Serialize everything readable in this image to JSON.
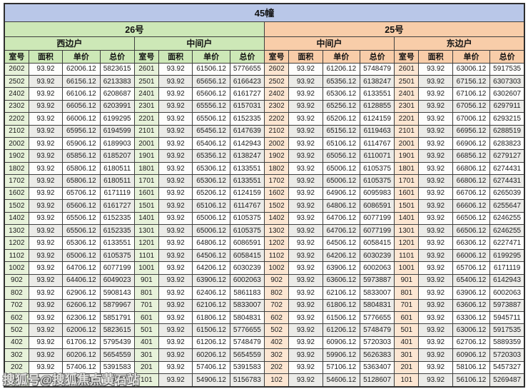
{
  "title": "45幢",
  "watermark": "搜狐号@搜狐焦点黄石站",
  "columns": [
    "室号",
    "面积",
    "单价",
    "总价"
  ],
  "sections": [
    {
      "label": "26号",
      "units": [
        "西边户",
        "中间户"
      ]
    },
    {
      "label": "25号",
      "units": [
        "中间户",
        "东边户"
      ]
    }
  ],
  "colors": {
    "title_bg": "#b9c7e8",
    "green_head": "#cde8b7",
    "green_cell": "#e7f2da",
    "orange_head": "#f8cda9",
    "orange_cell": "#fce6d2",
    "stripe": "#ebebe8",
    "border": "#3f3f3f"
  },
  "groups": [
    {
      "building": "26号",
      "unit_type": "西边户",
      "rows": [
        [
          "2602",
          "93.92",
          "62006.12",
          "5823615"
        ],
        [
          "2502",
          "93.92",
          "66156.12",
          "6213383"
        ],
        [
          "2402",
          "93.92",
          "66106.12",
          "6208687"
        ],
        [
          "2302",
          "93.92",
          "66056.12",
          "6203991"
        ],
        [
          "2202",
          "93.92",
          "66006.12",
          "6199295"
        ],
        [
          "2102",
          "93.92",
          "65956.12",
          "6194599"
        ],
        [
          "2002",
          "93.92",
          "65906.12",
          "6189903"
        ],
        [
          "1902",
          "93.92",
          "65856.12",
          "6185207"
        ],
        [
          "1802",
          "93.92",
          "65806.12",
          "6180511"
        ],
        [
          "1702",
          "93.92",
          "65806.12",
          "6180511"
        ],
        [
          "1602",
          "93.92",
          "65706.12",
          "6171119"
        ],
        [
          "1502",
          "93.92",
          "65606.12",
          "6161727"
        ],
        [
          "1402",
          "93.92",
          "65506.12",
          "6152335"
        ],
        [
          "1302",
          "93.92",
          "65506.12",
          "6152335"
        ],
        [
          "1202",
          "93.92",
          "65306.12",
          "6133551"
        ],
        [
          "1102",
          "93.92",
          "65006.12",
          "6105375"
        ],
        [
          "1002",
          "93.92",
          "64706.12",
          "6077199"
        ],
        [
          "902",
          "93.92",
          "64406.12",
          "6049023"
        ],
        [
          "802",
          "93.92",
          "62906.12",
          "5908143"
        ],
        [
          "702",
          "93.92",
          "62606.12",
          "5879967"
        ],
        [
          "602",
          "93.92",
          "62306.12",
          "5851791"
        ],
        [
          "502",
          "93.92",
          "62006.12",
          "5823615"
        ],
        [
          "402",
          "93.92",
          "61706.12",
          "5795439"
        ],
        [
          "302",
          "93.92",
          "60206.12",
          "5654559"
        ],
        [
          "202",
          "93.92",
          "57406.12",
          "5391583"
        ],
        [
          "102",
          "93.92",
          "55406.12",
          "5203743"
        ]
      ]
    },
    {
      "building": "26号",
      "unit_type": "中间户",
      "rows": [
        [
          "2601",
          "93.92",
          "61506.12",
          "5776655"
        ],
        [
          "2501",
          "93.92",
          "65656.12",
          "6166423"
        ],
        [
          "2401",
          "93.92",
          "65606.12",
          "6161727"
        ],
        [
          "2301",
          "93.92",
          "65556.12",
          "6157031"
        ],
        [
          "2201",
          "93.92",
          "65506.12",
          "6152335"
        ],
        [
          "2101",
          "93.92",
          "65456.12",
          "6147639"
        ],
        [
          "2001",
          "93.92",
          "65406.12",
          "6142943"
        ],
        [
          "1901",
          "93.92",
          "65356.12",
          "6138247"
        ],
        [
          "1801",
          "93.92",
          "65306.12",
          "6133551"
        ],
        [
          "1701",
          "93.92",
          "65306.12",
          "6133551"
        ],
        [
          "1601",
          "93.92",
          "65206.12",
          "6124159"
        ],
        [
          "1501",
          "93.92",
          "65106.12",
          "6114767"
        ],
        [
          "1401",
          "93.92",
          "65006.12",
          "6105375"
        ],
        [
          "1301",
          "93.92",
          "65006.12",
          "6105375"
        ],
        [
          "1201",
          "93.92",
          "64806.12",
          "6086591"
        ],
        [
          "1101",
          "93.92",
          "64506.12",
          "6058415"
        ],
        [
          "1001",
          "93.92",
          "64206.12",
          "6030239"
        ],
        [
          "901",
          "93.92",
          "63906.12",
          "6002063"
        ],
        [
          "801",
          "93.92",
          "62406.12",
          "5861183"
        ],
        [
          "701",
          "93.92",
          "62106.12",
          "5833007"
        ],
        [
          "601",
          "93.92",
          "61806.12",
          "5804831"
        ],
        [
          "501",
          "93.92",
          "61506.12",
          "5776655"
        ],
        [
          "401",
          "93.92",
          "61206.12",
          "5748479"
        ],
        [
          "301",
          "93.92",
          "60206.12",
          "5654559"
        ],
        [
          "201",
          "93.92",
          "57406.12",
          "5391583"
        ],
        [
          "101",
          "93.92",
          "54906.12",
          "5156783"
        ]
      ]
    },
    {
      "building": "25号",
      "unit_type": "中间户",
      "rows": [
        [
          "2602",
          "93.92",
          "61206.12",
          "5748479"
        ],
        [
          "2502",
          "93.92",
          "65356.12",
          "6138247"
        ],
        [
          "2402",
          "93.92",
          "65306.12",
          "6133551"
        ],
        [
          "2302",
          "93.92",
          "65256.12",
          "6128855"
        ],
        [
          "2202",
          "93.92",
          "65206.12",
          "6124159"
        ],
        [
          "2102",
          "93.92",
          "65156.12",
          "6119463"
        ],
        [
          "2002",
          "93.92",
          "65106.12",
          "6114767"
        ],
        [
          "1902",
          "93.92",
          "65056.12",
          "6110071"
        ],
        [
          "1802",
          "93.92",
          "65006.12",
          "6105375"
        ],
        [
          "1702",
          "93.92",
          "65006.12",
          "6105375"
        ],
        [
          "1602",
          "93.92",
          "64906.12",
          "6095983"
        ],
        [
          "1502",
          "93.92",
          "64806.12",
          "6086591"
        ],
        [
          "1402",
          "93.92",
          "64706.12",
          "6077199"
        ],
        [
          "1302",
          "93.92",
          "64706.12",
          "6077199"
        ],
        [
          "1202",
          "93.92",
          "64506.12",
          "6058415"
        ],
        [
          "1102",
          "93.92",
          "64206.12",
          "6030239"
        ],
        [
          "1002",
          "93.92",
          "63906.12",
          "6002063"
        ],
        [
          "902",
          "93.92",
          "63606.12",
          "5973887"
        ],
        [
          "802",
          "93.92",
          "62106.12",
          "5833007"
        ],
        [
          "702",
          "93.92",
          "61806.12",
          "5804831"
        ],
        [
          "602",
          "93.92",
          "61506.12",
          "5776655"
        ],
        [
          "502",
          "93.92",
          "61206.12",
          "5748479"
        ],
        [
          "402",
          "93.92",
          "60906.12",
          "5720303"
        ],
        [
          "302",
          "93.92",
          "59906.12",
          "5626383"
        ],
        [
          "202",
          "93.92",
          "57106.12",
          "5363407"
        ],
        [
          "102",
          "93.92",
          "54606.12",
          "5128607"
        ]
      ]
    },
    {
      "building": "25号",
      "unit_type": "东边户",
      "rows": [
        [
          "2601",
          "93.92",
          "63006.12",
          "5917535"
        ],
        [
          "2501",
          "93.92",
          "67156.12",
          "6307303"
        ],
        [
          "2401",
          "93.92",
          "67106.12",
          "6302607"
        ],
        [
          "2301",
          "93.92",
          "67056.12",
          "6297911"
        ],
        [
          "2201",
          "93.92",
          "67006.12",
          "6293215"
        ],
        [
          "2101",
          "93.92",
          "66956.12",
          "6288519"
        ],
        [
          "2001",
          "93.92",
          "66906.12",
          "6283823"
        ],
        [
          "1901",
          "93.92",
          "66856.12",
          "6279127"
        ],
        [
          "1801",
          "93.92",
          "66806.12",
          "6274431"
        ],
        [
          "1701",
          "93.92",
          "66806.12",
          "6274431"
        ],
        [
          "1601",
          "93.92",
          "66706.12",
          "6265039"
        ],
        [
          "1501",
          "93.92",
          "66606.12",
          "6255647"
        ],
        [
          "1401",
          "93.92",
          "66506.12",
          "6246255"
        ],
        [
          "1301",
          "93.92",
          "66506.12",
          "6246255"
        ],
        [
          "1201",
          "93.92",
          "66306.12",
          "6227471"
        ],
        [
          "1101",
          "93.92",
          "66006.12",
          "6199295"
        ],
        [
          "1001",
          "93.92",
          "65706.12",
          "6171119"
        ],
        [
          "901",
          "93.92",
          "65406.12",
          "6142943"
        ],
        [
          "801",
          "93.92",
          "63906.12",
          "6002063"
        ],
        [
          "701",
          "93.92",
          "63606.12",
          "5973887"
        ],
        [
          "601",
          "93.92",
          "63306.12",
          "5945711"
        ],
        [
          "501",
          "93.92",
          "63006.12",
          "5917535"
        ],
        [
          "401",
          "93.92",
          "62706.12",
          "5889359"
        ],
        [
          "301",
          "93.92",
          "60906.12",
          "5720303"
        ],
        [
          "201",
          "93.92",
          "58106.12",
          "5457327"
        ],
        [
          "101",
          "93.92",
          "56106.12",
          "5269487"
        ]
      ]
    }
  ]
}
